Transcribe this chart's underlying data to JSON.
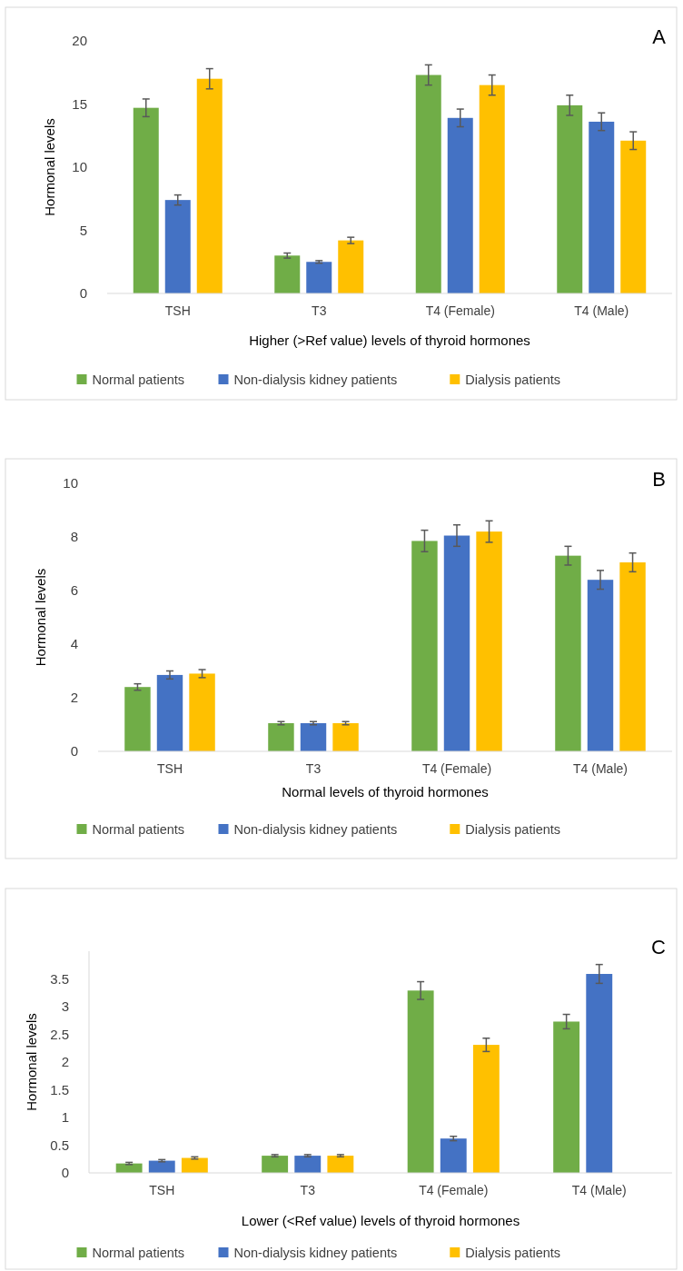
{
  "chart_data": [
    {
      "type": "bar",
      "annotations": [
        "A"
      ],
      "xlabel": "Higher (>Ref value) levels of thyroid hormones",
      "ylabel": "Hormonal levels",
      "categories": [
        "TSH",
        "T3",
        "T4 (Female)",
        "T4 (Male)"
      ],
      "ylim": [
        0,
        20
      ],
      "yticks": [
        0,
        5,
        10,
        15,
        20
      ],
      "grid": false,
      "legend": "bottom",
      "series": [
        {
          "name": "Normal patients",
          "color": "#70ad47",
          "values": [
            14.7,
            3.0,
            17.3,
            14.9
          ],
          "errors": [
            0.7,
            0.2,
            0.8,
            0.8
          ]
        },
        {
          "name": "Non-dialysis kidney patients",
          "color": "#4472c4",
          "values": [
            7.4,
            2.5,
            13.9,
            13.6
          ],
          "errors": [
            0.4,
            0.1,
            0.7,
            0.7
          ]
        },
        {
          "name": "Dialysis patients",
          "color": "#ffc000",
          "values": [
            17.0,
            4.2,
            16.5,
            12.1
          ],
          "errors": [
            0.8,
            0.25,
            0.8,
            0.7
          ]
        }
      ]
    },
    {
      "type": "bar",
      "annotations": [
        "B"
      ],
      "xlabel": "Normal levels of thyroid hormones",
      "ylabel": "Hormonal levels",
      "categories": [
        "TSH",
        "T3",
        "T4 (Female)",
        "T4 (Male)"
      ],
      "ylim": [
        0,
        10
      ],
      "yticks": [
        0,
        2,
        4,
        6,
        8,
        10
      ],
      "grid": false,
      "legend": "bottom",
      "series": [
        {
          "name": "Normal patients",
          "color": "#70ad47",
          "values": [
            2.4,
            1.05,
            7.85,
            7.3
          ],
          "errors": [
            0.12,
            0.06,
            0.4,
            0.35
          ]
        },
        {
          "name": "Non-dialysis kidney patients",
          "color": "#4472c4",
          "values": [
            2.85,
            1.05,
            8.05,
            6.4
          ],
          "errors": [
            0.15,
            0.06,
            0.4,
            0.35
          ]
        },
        {
          "name": "Dialysis patients",
          "color": "#ffc000",
          "values": [
            2.9,
            1.05,
            8.2,
            7.05
          ],
          "errors": [
            0.15,
            0.06,
            0.4,
            0.35
          ]
        }
      ]
    },
    {
      "type": "bar",
      "annotations": [
        "C"
      ],
      "xlabel": "Lower (<Ref value) levels of thyroid hormones",
      "ylabel": "Hormonal levels",
      "categories": [
        "TSH",
        "T3",
        "T4 (Female)",
        "T4 (Male)"
      ],
      "ylim": [
        0,
        4
      ],
      "yticks": [
        0,
        0.5,
        1,
        1.5,
        2,
        2.5,
        3,
        3.5
      ],
      "grid": false,
      "legend": "bottom",
      "series": [
        {
          "name": "Normal patients",
          "color": "#70ad47",
          "values": [
            0.17,
            0.31,
            3.29,
            2.73
          ],
          "errors": [
            0.02,
            0.02,
            0.16,
            0.13
          ]
        },
        {
          "name": "Non-dialysis kidney patients",
          "color": "#4472c4",
          "values": [
            0.22,
            0.31,
            0.62,
            3.59
          ],
          "errors": [
            0.02,
            0.02,
            0.04,
            0.17
          ]
        },
        {
          "name": "Dialysis patients",
          "color": "#ffc000",
          "values": [
            0.27,
            0.31,
            2.31,
            null
          ],
          "errors": [
            0.02,
            0.02,
            0.12,
            null
          ]
        }
      ]
    }
  ]
}
